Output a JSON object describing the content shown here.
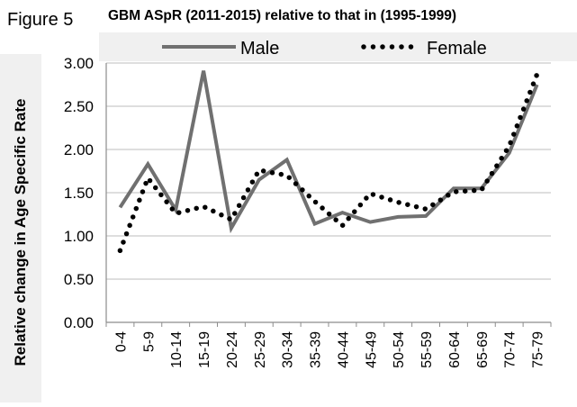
{
  "figure_label": "Figure 5",
  "chart_data": {
    "type": "line",
    "title": "GBM ASpR (2011-2015) relative to that in (1995-1999)",
    "xlabel": "",
    "ylabel": "Relative change in Age Specific Rate",
    "categories": [
      "0-4",
      "5-9",
      "10-14",
      "15-19",
      "20-24",
      "25-29",
      "30-34",
      "35-39",
      "40-44",
      "45-49",
      "50-54",
      "55-59",
      "60-64",
      "65-69",
      "70-74",
      "75-79"
    ],
    "y_ticks": [
      "0.00",
      "0.50",
      "1.00",
      "1.50",
      "2.00",
      "2.50",
      "3.00"
    ],
    "ylim": [
      0,
      3
    ],
    "grid": "horizontal",
    "legend_placement": "top",
    "series": [
      {
        "name": "Male",
        "style": "solid",
        "color": "#707070",
        "values": [
          1.33,
          1.83,
          1.3,
          2.91,
          1.09,
          1.65,
          1.88,
          1.14,
          1.27,
          1.16,
          1.22,
          1.23,
          1.55,
          1.55,
          1.96,
          2.75
        ]
      },
      {
        "name": "Female",
        "style": "dotted",
        "color": "#000000",
        "values": [
          0.83,
          1.67,
          1.26,
          1.34,
          1.19,
          1.76,
          1.7,
          1.4,
          1.12,
          1.49,
          1.39,
          1.31,
          1.51,
          1.53,
          2.04,
          2.87
        ]
      }
    ]
  }
}
